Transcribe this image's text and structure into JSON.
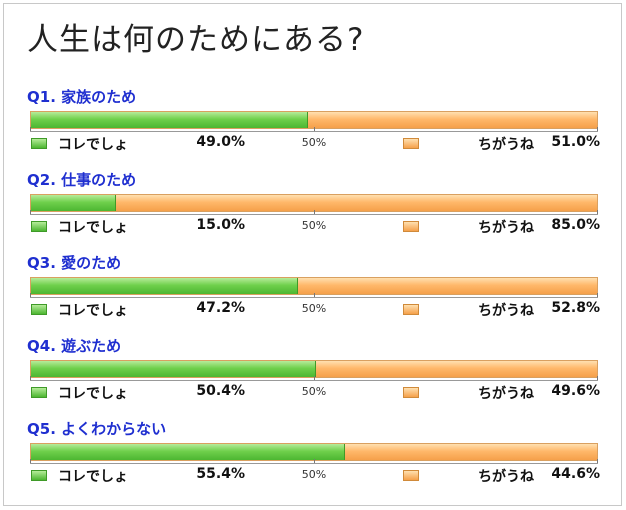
{
  "title": "人生は何のためにある?",
  "legend": {
    "yes_label": "コレでしょ",
    "no_label": "ちがうね",
    "yes_color": "#5cc43a",
    "no_color": "#ffa850"
  },
  "axis": {
    "mid_label": "50%"
  },
  "chart_data": {
    "type": "bar",
    "stacked": true,
    "orientation": "horizontal",
    "title": "人生は何のためにある?",
    "xlim": [
      0,
      100
    ],
    "categories": [
      "Q1. 家族のため",
      "Q2. 仕事のため",
      "Q3. 愛のため",
      "Q4. 遊ぶため",
      "Q5. よくわからない"
    ],
    "series": [
      {
        "name": "コレでしょ",
        "values": [
          49.0,
          15.0,
          47.2,
          50.4,
          55.4
        ],
        "labels": [
          "49.0%",
          "15.0%",
          "47.2%",
          "50.4%",
          "55.4%"
        ]
      },
      {
        "name": "ちがうね",
        "values": [
          51.0,
          85.0,
          52.8,
          49.6,
          44.6
        ],
        "labels": [
          "51.0%",
          "85.0%",
          "52.8%",
          "49.6%",
          "44.6%"
        ]
      }
    ]
  }
}
